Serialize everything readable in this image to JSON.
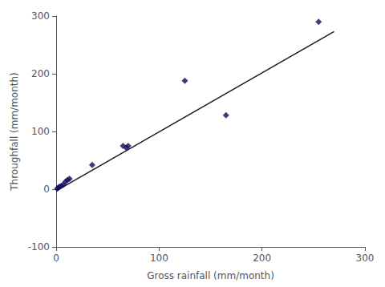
{
  "chart_data": {
    "type": "scatter",
    "xlabel": "Gross rainfall (mm/month)",
    "ylabel": "Throughfall (mm/month)",
    "xlim": [
      0,
      300
    ],
    "ylim": [
      -100,
      300
    ],
    "xticks": [
      0,
      100,
      200,
      300
    ],
    "yticks": [
      -100,
      0,
      100,
      200,
      300
    ],
    "grid": false,
    "series": [
      {
        "type": "line",
        "color": "#1a1a1a",
        "line_style": "solid",
        "x": [
          0,
          270
        ],
        "values": [
          -3,
          273
        ]
      },
      {
        "type": "scatter",
        "color": "#0d0d5e",
        "marker": "diamond",
        "x": [
          1,
          2,
          3,
          5,
          7,
          9,
          11,
          13,
          35,
          65,
          68,
          70,
          125,
          165,
          255
        ],
        "values": [
          1,
          2,
          4,
          6,
          8,
          13,
          16,
          18,
          42,
          75,
          72,
          75,
          188,
          128,
          290
        ]
      }
    ]
  }
}
